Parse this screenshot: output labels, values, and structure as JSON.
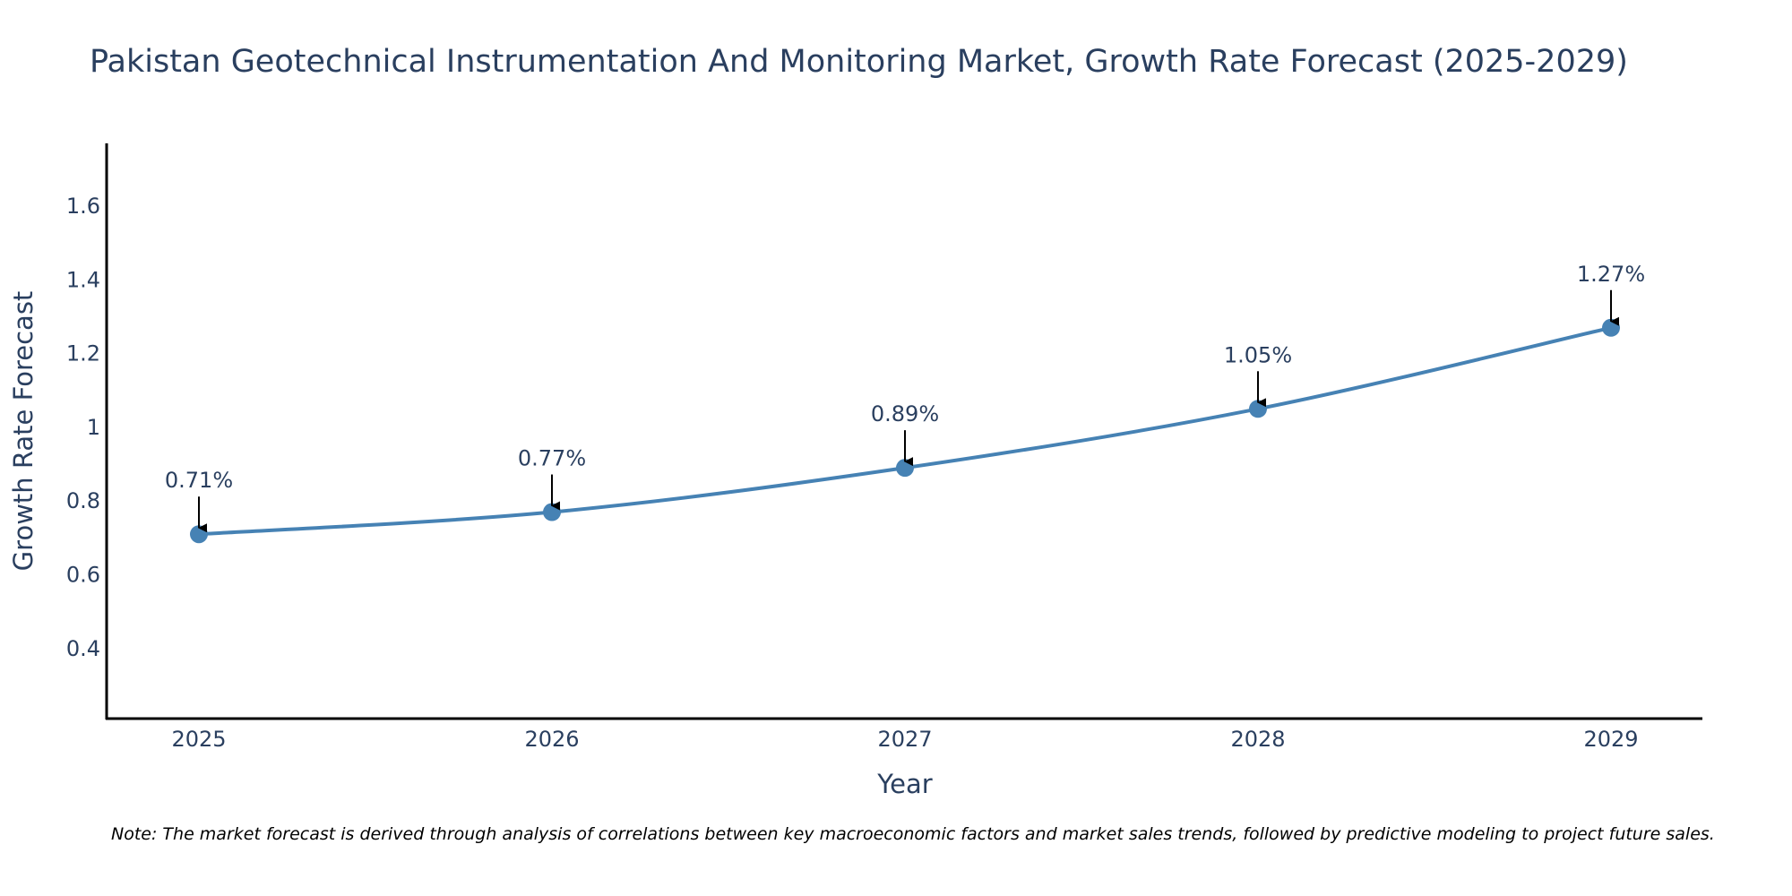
{
  "chart_data": {
    "type": "line",
    "title": "Pakistan Geotechnical Instrumentation And Monitoring Market, Growth Rate Forecast (2025-2029)",
    "xlabel": "Year",
    "ylabel": "Growth Rate Forecast",
    "categories": [
      "2025",
      "2026",
      "2027",
      "2028",
      "2029"
    ],
    "values": [
      0.71,
      0.77,
      0.89,
      1.05,
      1.27
    ],
    "data_labels": [
      "0.71%",
      "0.77%",
      "0.89%",
      "1.05%",
      "1.27%"
    ],
    "yticks": [
      0.4,
      0.6,
      0.8,
      1,
      1.2,
      1.4,
      1.6
    ],
    "ytick_labels": [
      "0.4",
      "0.6",
      "0.8",
      "1",
      "1.2",
      "1.4",
      "1.6"
    ],
    "ylim": [
      0.21,
      1.77
    ],
    "grid": false,
    "legend": "none",
    "line_color": "#4682b4",
    "marker_color": "#4682b4",
    "arrow_color": "#000000"
  },
  "footnote": "Note: The market forecast is derived through analysis of correlations between key macroeconomic factors and market sales trends, followed by predictive modeling to project future sales."
}
